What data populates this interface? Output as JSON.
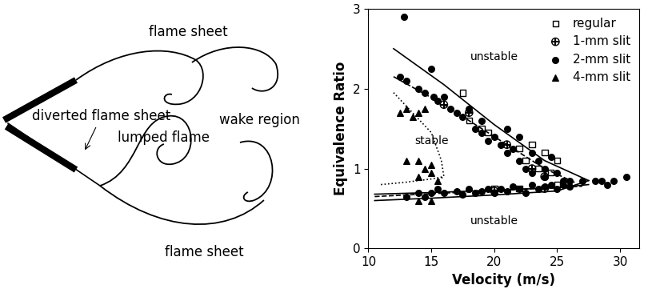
{
  "diagram": {
    "labels": [
      "flame sheet",
      "diverted flame sheet",
      "wake region",
      "lumped flame",
      "flame sheet"
    ]
  },
  "chart_data": {
    "type": "scatter",
    "xlabel": "Velocity (m/s)",
    "ylabel": "Equivalence Ratio",
    "xlim": [
      10,
      31.5
    ],
    "ylim": [
      0,
      3
    ],
    "xticks": [
      10,
      15,
      20,
      25,
      30
    ],
    "yticks": [
      0,
      1,
      2,
      3
    ],
    "legend": "upper right",
    "annotations": [
      {
        "text": "unstable",
        "x": 20,
        "y": 2.4
      },
      {
        "text": "stable",
        "x": 15,
        "y": 1.35
      },
      {
        "text": "unstable",
        "x": 20,
        "y": 0.35
      }
    ],
    "series": [
      {
        "name": "regular",
        "type": "scatter",
        "marker": "square_open",
        "color": "#000000",
        "x": [
          17.5,
          18,
          19,
          19.5,
          22,
          22.5,
          23,
          23.5,
          24,
          24.5,
          25,
          25,
          22,
          20
        ],
        "values": [
          1.95,
          1.6,
          1.5,
          1.45,
          1.25,
          1.1,
          1.3,
          1.0,
          1.2,
          0.95,
          1.1,
          0.8,
          0.75,
          0.75
        ]
      },
      {
        "name": "1-mm slit",
        "type": "scatter",
        "marker": "circle_plus",
        "color": "#000000",
        "x": [
          16,
          18,
          21,
          23,
          24,
          20,
          24
        ],
        "values": [
          1.8,
          1.7,
          1.3,
          1.0,
          0.9,
          0.72,
          0.75
        ]
      },
      {
        "name": "2-mm slit",
        "type": "scatter",
        "marker": "circle",
        "color": "#000000",
        "x": [
          12.8,
          12.5,
          13,
          14,
          14.5,
          15,
          15.2,
          15.5,
          16,
          16.5,
          17,
          17.5,
          18,
          18.5,
          19,
          19,
          19.5,
          20,
          20.5,
          21,
          21,
          21.5,
          22,
          22,
          22.5,
          23,
          23,
          23.5,
          24,
          24,
          24.5,
          25,
          25.5,
          26,
          27,
          28,
          28.5,
          29,
          30.5,
          29.5,
          13,
          14,
          14.5,
          15,
          15.5,
          16,
          17,
          17.5,
          18,
          18.5,
          19,
          19.5,
          20,
          20.5,
          21,
          21.5,
          22,
          22.5,
          23,
          23.5,
          24,
          24.5,
          25,
          25.5,
          26
        ],
        "values": [
          2.9,
          2.15,
          2.1,
          2.0,
          1.95,
          2.25,
          1.9,
          1.85,
          1.9,
          1.75,
          1.7,
          1.65,
          1.75,
          1.5,
          1.45,
          1.6,
          1.35,
          1.4,
          1.3,
          1.2,
          1.5,
          1.25,
          1.1,
          1.4,
          1.0,
          1.2,
          0.95,
          1.1,
          1.0,
          0.9,
          1.15,
          0.95,
          0.85,
          0.85,
          0.85,
          0.85,
          0.85,
          0.8,
          0.9,
          0.85,
          0.65,
          0.7,
          0.65,
          0.7,
          0.75,
          0.7,
          0.72,
          0.68,
          0.75,
          0.7,
          0.72,
          0.75,
          0.7,
          0.75,
          0.72,
          0.78,
          0.75,
          0.7,
          0.8,
          0.75,
          0.78,
          0.8,
          0.75,
          0.8,
          0.78
        ]
      },
      {
        "name": "4-mm slit",
        "type": "scatter",
        "marker": "triangle",
        "color": "#000000",
        "x": [
          12.5,
          13,
          13.5,
          14,
          14.5,
          13,
          14,
          14.5,
          15,
          15,
          14,
          15.5,
          14,
          15
        ],
        "values": [
          1.7,
          1.75,
          1.65,
          1.7,
          1.75,
          1.1,
          1.1,
          1.0,
          0.95,
          1.05,
          0.9,
          0.85,
          0.6,
          0.6
        ]
      },
      {
        "type": "line",
        "line_style": "solid",
        "color": "#000000",
        "x": [
          12,
          16,
          20,
          24,
          27.5
        ],
        "values": [
          2.5,
          2.05,
          1.55,
          1.1,
          0.85
        ]
      },
      {
        "type": "line",
        "line_style": "dashed",
        "color": "#000000",
        "x": [
          12,
          16,
          20,
          24,
          26.5
        ],
        "values": [
          2.15,
          1.8,
          1.4,
          1.0,
          0.82
        ]
      },
      {
        "type": "line",
        "line_style": "solid",
        "color": "#000000",
        "x": [
          10.5,
          15,
          20,
          25,
          27.5
        ],
        "values": [
          0.6,
          0.63,
          0.67,
          0.72,
          0.85
        ]
      },
      {
        "type": "line",
        "line_style": "solid",
        "color": "#000000",
        "x": [
          10.5,
          15,
          20,
          25,
          27.5
        ],
        "values": [
          0.68,
          0.7,
          0.73,
          0.76,
          0.8
        ]
      },
      {
        "type": "line",
        "line_style": "dashed",
        "color": "#000000",
        "x": [
          10.5,
          27
        ],
        "values": [
          0.65,
          0.78
        ]
      },
      {
        "type": "line",
        "line_style": "dotted",
        "color": "#000000",
        "x": [
          12,
          13.5,
          15,
          15.8,
          16,
          15.5
        ],
        "values": [
          1.95,
          1.7,
          1.45,
          1.1,
          0.9,
          0.85
        ]
      },
      {
        "type": "line",
        "line_style": "dotted",
        "color": "#000000",
        "x": [
          11,
          13,
          15,
          16
        ],
        "values": [
          0.8,
          0.83,
          0.87,
          0.9
        ]
      }
    ]
  }
}
